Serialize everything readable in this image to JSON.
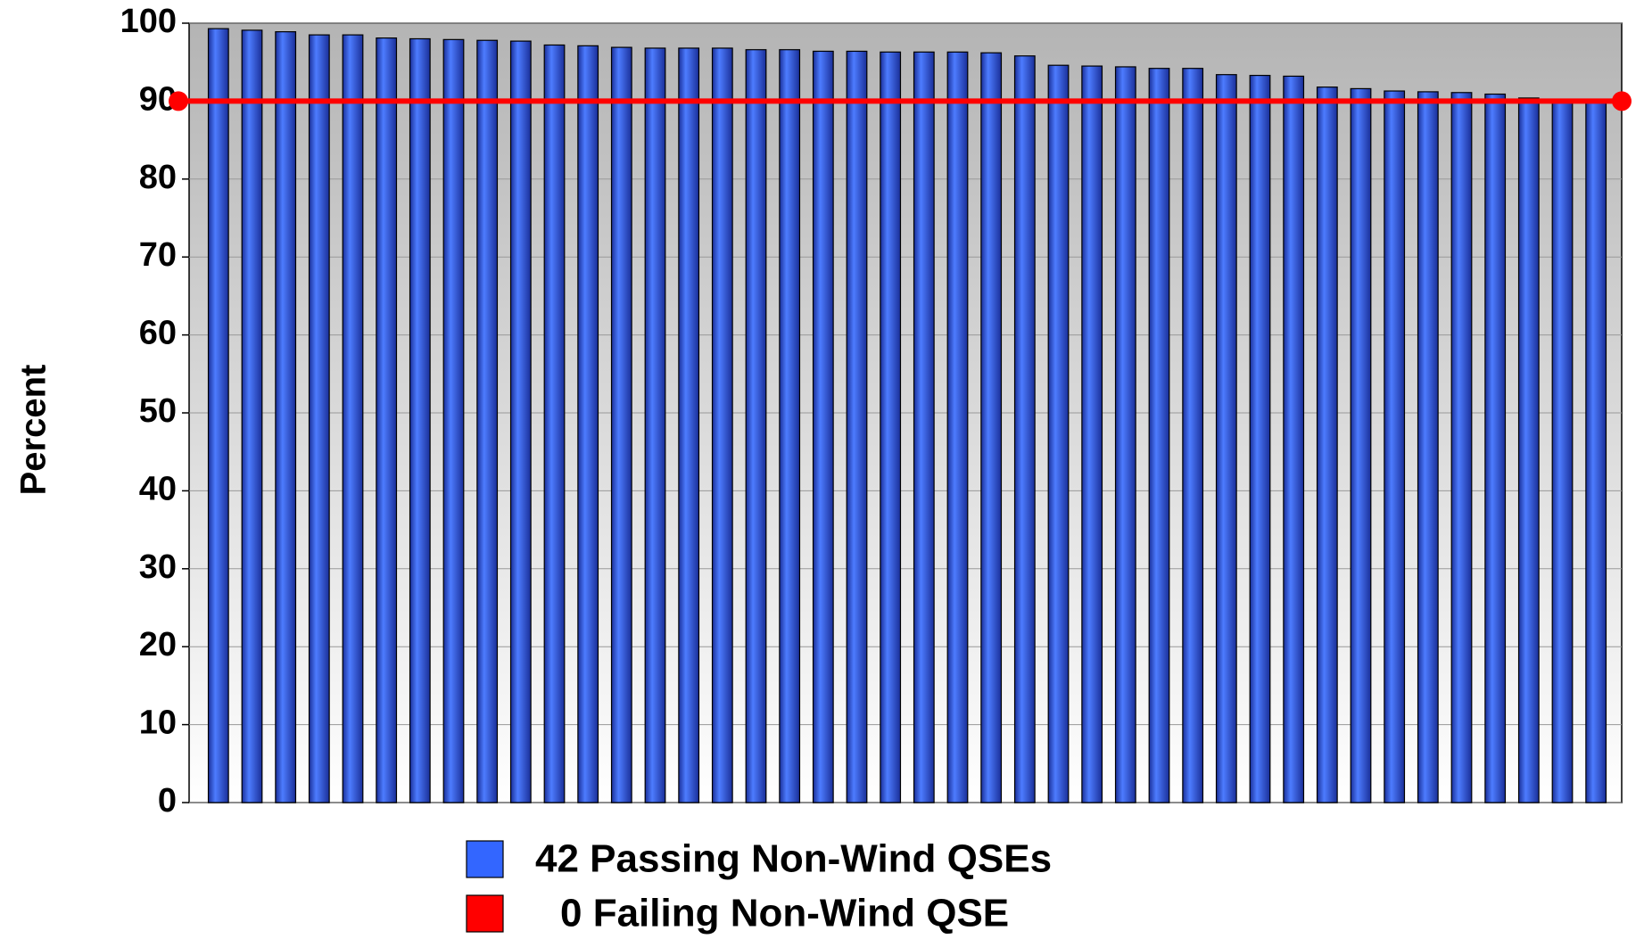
{
  "chart_data": {
    "type": "bar",
    "y_label": "Percent",
    "categories": [
      null,
      null,
      null,
      null,
      null,
      null,
      null,
      null,
      null,
      null,
      null,
      null,
      null,
      null,
      null,
      null,
      null,
      null,
      null,
      null,
      null,
      null,
      null,
      null,
      null,
      null,
      null,
      null,
      null,
      null,
      null,
      null,
      null,
      null,
      null,
      null,
      null,
      null,
      null,
      null,
      null,
      null
    ],
    "series": [
      {
        "name": "42 Passing Non-Wind QSEs",
        "color": "#3366ff",
        "values": [
          99.3,
          99.1,
          98.9,
          98.5,
          98.5,
          98.1,
          98.0,
          97.9,
          97.8,
          97.7,
          97.2,
          97.1,
          96.9,
          96.8,
          96.8,
          96.8,
          96.6,
          96.6,
          96.4,
          96.4,
          96.3,
          96.3,
          96.3,
          96.2,
          95.8,
          94.6,
          94.5,
          94.4,
          94.2,
          94.2,
          93.4,
          93.3,
          93.2,
          91.8,
          91.6,
          91.3,
          91.2,
          91.1,
          90.9,
          90.4,
          90.2,
          90.1
        ]
      },
      {
        "name": "0 Failing Non-Wind QSE",
        "color": "#ff0000",
        "values": [
          null,
          null,
          null,
          null,
          null,
          null,
          null,
          null,
          null,
          null,
          null,
          null,
          null,
          null,
          null,
          null,
          null,
          null,
          null,
          null,
          null,
          null,
          null,
          null,
          null,
          null,
          null,
          null,
          null,
          null,
          null,
          null,
          null,
          null,
          null,
          null,
          null,
          null,
          null,
          null,
          null,
          null
        ]
      }
    ],
    "threshold": {
      "value": 90,
      "color": "#ff0000"
    },
    "ylim": [
      0,
      100
    ],
    "yticks": [
      0,
      10,
      20,
      30,
      40,
      50,
      60,
      70,
      80,
      90,
      100
    ],
    "grid": true
  }
}
